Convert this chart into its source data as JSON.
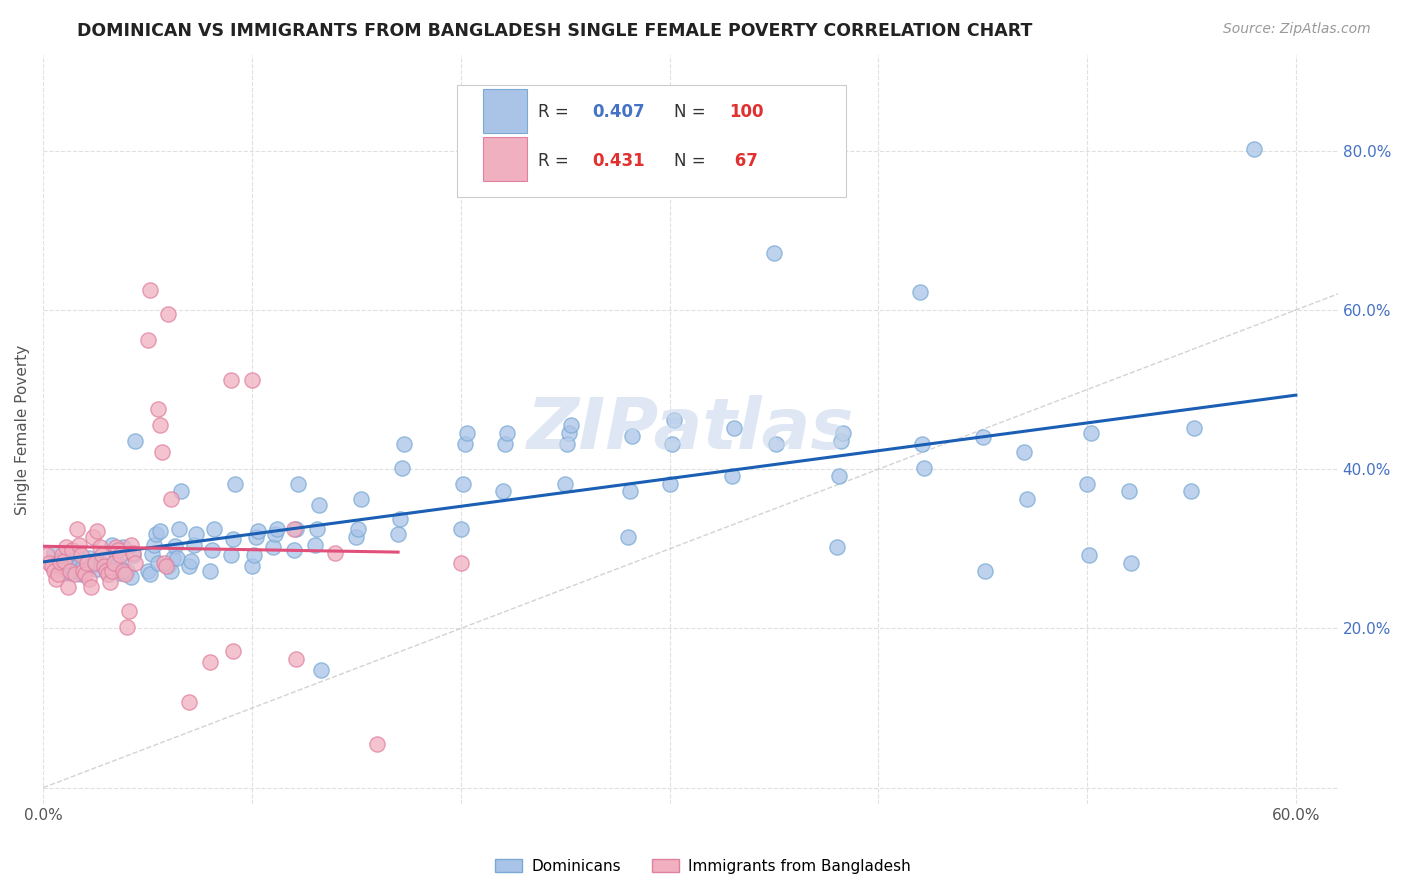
{
  "title": "DOMINICAN VS IMMIGRANTS FROM BANGLADESH SINGLE FEMALE POVERTY CORRELATION CHART",
  "source": "Source: ZipAtlas.com",
  "ylabel": "Single Female Poverty",
  "xlim": [
    0.0,
    0.62
  ],
  "ylim": [
    -0.02,
    0.92
  ],
  "blue_color": "#aac4e8",
  "blue_edge_color": "#7aaad4",
  "pink_color": "#f0b0c0",
  "pink_edge_color": "#e080a0",
  "blue_line_color": "#1a5fb4",
  "pink_line_color": "#e0507a",
  "diagonal_color": "#c8c8c8",
  "watermark_color": "#c8d8ec",
  "background_color": "#ffffff",
  "grid_color": "#e0e0e0",
  "marker_size": 120,
  "legend_label_1": "Dominicans",
  "legend_label_2": "Immigrants from Bangladesh",
  "blue_scatter": [
    [
      0.005,
      0.295
    ],
    [
      0.007,
      0.285
    ],
    [
      0.009,
      0.275
    ],
    [
      0.01,
      0.29
    ],
    [
      0.012,
      0.28
    ],
    [
      0.013,
      0.27
    ],
    [
      0.014,
      0.285
    ],
    [
      0.015,
      0.295
    ],
    [
      0.016,
      0.272
    ],
    [
      0.017,
      0.28
    ],
    [
      0.018,
      0.268
    ],
    [
      0.019,
      0.278
    ],
    [
      0.02,
      0.273
    ],
    [
      0.021,
      0.283
    ],
    [
      0.022,
      0.288
    ],
    [
      0.023,
      0.278
    ],
    [
      0.025,
      0.285
    ],
    [
      0.026,
      0.275
    ],
    [
      0.027,
      0.282
    ],
    [
      0.03,
      0.275
    ],
    [
      0.031,
      0.268
    ],
    [
      0.032,
      0.288
    ],
    [
      0.033,
      0.305
    ],
    [
      0.035,
      0.278
    ],
    [
      0.036,
      0.282
    ],
    [
      0.037,
      0.27
    ],
    [
      0.038,
      0.302
    ],
    [
      0.04,
      0.272
    ],
    [
      0.042,
      0.265
    ],
    [
      0.043,
      0.292
    ],
    [
      0.044,
      0.435
    ],
    [
      0.05,
      0.272
    ],
    [
      0.051,
      0.268
    ],
    [
      0.052,
      0.293
    ],
    [
      0.053,
      0.305
    ],
    [
      0.054,
      0.318
    ],
    [
      0.055,
      0.282
    ],
    [
      0.056,
      0.322
    ],
    [
      0.06,
      0.278
    ],
    [
      0.061,
      0.272
    ],
    [
      0.062,
      0.288
    ],
    [
      0.063,
      0.304
    ],
    [
      0.064,
      0.288
    ],
    [
      0.065,
      0.325
    ],
    [
      0.066,
      0.372
    ],
    [
      0.07,
      0.278
    ],
    [
      0.071,
      0.285
    ],
    [
      0.072,
      0.305
    ],
    [
      0.073,
      0.318
    ],
    [
      0.08,
      0.272
    ],
    [
      0.081,
      0.298
    ],
    [
      0.082,
      0.325
    ],
    [
      0.09,
      0.292
    ],
    [
      0.091,
      0.312
    ],
    [
      0.092,
      0.382
    ],
    [
      0.1,
      0.278
    ],
    [
      0.101,
      0.292
    ],
    [
      0.102,
      0.315
    ],
    [
      0.103,
      0.322
    ],
    [
      0.11,
      0.302
    ],
    [
      0.111,
      0.318
    ],
    [
      0.112,
      0.325
    ],
    [
      0.12,
      0.298
    ],
    [
      0.121,
      0.325
    ],
    [
      0.122,
      0.382
    ],
    [
      0.13,
      0.305
    ],
    [
      0.131,
      0.325
    ],
    [
      0.132,
      0.355
    ],
    [
      0.133,
      0.148
    ],
    [
      0.15,
      0.315
    ],
    [
      0.151,
      0.325
    ],
    [
      0.152,
      0.362
    ],
    [
      0.17,
      0.318
    ],
    [
      0.171,
      0.338
    ],
    [
      0.172,
      0.402
    ],
    [
      0.173,
      0.432
    ],
    [
      0.2,
      0.325
    ],
    [
      0.201,
      0.382
    ],
    [
      0.202,
      0.432
    ],
    [
      0.203,
      0.445
    ],
    [
      0.22,
      0.372
    ],
    [
      0.221,
      0.432
    ],
    [
      0.222,
      0.445
    ],
    [
      0.25,
      0.382
    ],
    [
      0.251,
      0.432
    ],
    [
      0.252,
      0.445
    ],
    [
      0.253,
      0.455
    ],
    [
      0.28,
      0.315
    ],
    [
      0.281,
      0.372
    ],
    [
      0.282,
      0.442
    ],
    [
      0.3,
      0.382
    ],
    [
      0.301,
      0.432
    ],
    [
      0.302,
      0.462
    ],
    [
      0.33,
      0.392
    ],
    [
      0.331,
      0.452
    ],
    [
      0.35,
      0.672
    ],
    [
      0.351,
      0.432
    ],
    [
      0.38,
      0.302
    ],
    [
      0.381,
      0.392
    ],
    [
      0.382,
      0.435
    ],
    [
      0.383,
      0.445
    ],
    [
      0.42,
      0.622
    ],
    [
      0.421,
      0.432
    ],
    [
      0.422,
      0.402
    ],
    [
      0.45,
      0.44
    ],
    [
      0.451,
      0.272
    ],
    [
      0.47,
      0.422
    ],
    [
      0.471,
      0.362
    ],
    [
      0.5,
      0.382
    ],
    [
      0.501,
      0.292
    ],
    [
      0.502,
      0.445
    ],
    [
      0.52,
      0.372
    ],
    [
      0.521,
      0.282
    ],
    [
      0.55,
      0.372
    ],
    [
      0.551,
      0.452
    ],
    [
      0.58,
      0.802
    ]
  ],
  "pink_scatter": [
    [
      0.002,
      0.292
    ],
    [
      0.003,
      0.282
    ],
    [
      0.004,
      0.278
    ],
    [
      0.005,
      0.272
    ],
    [
      0.006,
      0.262
    ],
    [
      0.007,
      0.268
    ],
    [
      0.008,
      0.284
    ],
    [
      0.009,
      0.292
    ],
    [
      0.01,
      0.285
    ],
    [
      0.011,
      0.302
    ],
    [
      0.012,
      0.252
    ],
    [
      0.013,
      0.272
    ],
    [
      0.014,
      0.298
    ],
    [
      0.015,
      0.268
    ],
    [
      0.016,
      0.325
    ],
    [
      0.017,
      0.305
    ],
    [
      0.018,
      0.292
    ],
    [
      0.019,
      0.272
    ],
    [
      0.02,
      0.268
    ],
    [
      0.021,
      0.282
    ],
    [
      0.022,
      0.262
    ],
    [
      0.023,
      0.252
    ],
    [
      0.024,
      0.315
    ],
    [
      0.025,
      0.282
    ],
    [
      0.026,
      0.322
    ],
    [
      0.027,
      0.302
    ],
    [
      0.028,
      0.292
    ],
    [
      0.029,
      0.278
    ],
    [
      0.03,
      0.272
    ],
    [
      0.031,
      0.268
    ],
    [
      0.032,
      0.258
    ],
    [
      0.033,
      0.272
    ],
    [
      0.034,
      0.282
    ],
    [
      0.035,
      0.302
    ],
    [
      0.036,
      0.298
    ],
    [
      0.037,
      0.292
    ],
    [
      0.038,
      0.272
    ],
    [
      0.039,
      0.268
    ],
    [
      0.04,
      0.202
    ],
    [
      0.041,
      0.222
    ],
    [
      0.042,
      0.305
    ],
    [
      0.043,
      0.295
    ],
    [
      0.044,
      0.282
    ],
    [
      0.05,
      0.562
    ],
    [
      0.051,
      0.625
    ],
    [
      0.055,
      0.475
    ],
    [
      0.056,
      0.455
    ],
    [
      0.057,
      0.422
    ],
    [
      0.058,
      0.282
    ],
    [
      0.059,
      0.278
    ],
    [
      0.06,
      0.595
    ],
    [
      0.061,
      0.362
    ],
    [
      0.07,
      0.108
    ],
    [
      0.08,
      0.158
    ],
    [
      0.09,
      0.512
    ],
    [
      0.091,
      0.172
    ],
    [
      0.1,
      0.512
    ],
    [
      0.12,
      0.325
    ],
    [
      0.121,
      0.162
    ],
    [
      0.14,
      0.295
    ],
    [
      0.16,
      0.055
    ],
    [
      0.2,
      0.282
    ]
  ]
}
